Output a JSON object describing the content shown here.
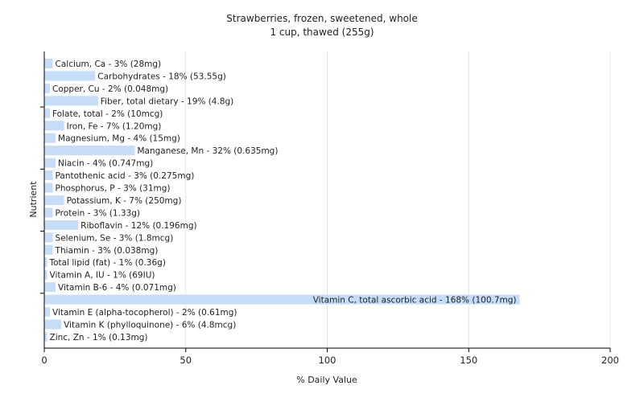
{
  "chart_data": {
    "type": "bar",
    "orientation": "horizontal",
    "title": "Strawberries, frozen, sweetened, whole",
    "subtitle": "1 cup, thawed (255g)",
    "xlabel": "% Daily Value",
    "ylabel": "Nutrient",
    "xlim": [
      0,
      200
    ],
    "xticks": [
      "0",
      "50",
      "100",
      "150",
      "200"
    ],
    "grid": "vertical",
    "bar_color": "#c6dcf7",
    "categories": [
      "Calcium, Ca",
      "Carbohydrates",
      "Copper, Cu",
      "Fiber, total dietary",
      "Folate, total",
      "Iron, Fe",
      "Magnesium, Mg",
      "Manganese, Mn",
      "Niacin",
      "Pantothenic acid",
      "Phosphorus, P",
      "Potassium, K",
      "Protein",
      "Riboflavin",
      "Selenium, Se",
      "Thiamin",
      "Total lipid (fat)",
      "Vitamin A, IU",
      "Vitamin B-6",
      "Vitamin C, total ascorbic acid",
      "Vitamin E (alpha-tocopherol)",
      "Vitamin K (phylloquinone)",
      "Zinc, Zn"
    ],
    "values": [
      3,
      18,
      2,
      19,
      2,
      7,
      4,
      32,
      4,
      3,
      3,
      7,
      3,
      12,
      3,
      3,
      1,
      1,
      4,
      168,
      2,
      6,
      1
    ],
    "bar_labels": [
      "Calcium, Ca - 3% (28mg)",
      "Carbohydrates - 18% (53.55g)",
      "Copper, Cu - 2% (0.048mg)",
      "Fiber, total dietary - 19% (4.8g)",
      "Folate, total - 2% (10mcg)",
      "Iron, Fe - 7% (1.20mg)",
      "Magnesium, Mg - 4% (15mg)",
      "Manganese, Mn - 32% (0.635mg)",
      "Niacin - 4% (0.747mg)",
      "Pantothenic acid - 3% (0.275mg)",
      "Phosphorus, P - 3% (31mg)",
      "Potassium, K - 7% (250mg)",
      "Protein - 3% (1.33g)",
      "Riboflavin - 12% (0.196mg)",
      "Selenium, Se - 3% (1.8mcg)",
      "Thiamin - 3% (0.038mg)",
      "Total lipid (fat) - 1% (0.36g)",
      "Vitamin A, IU - 1% (69IU)",
      "Vitamin B-6 - 4% (0.071mg)",
      "Vitamin C, total ascorbic acid - 168% (100.7mg)",
      "Vitamin E (alpha-tocopherol) - 2% (0.61mg)",
      "Vitamin K (phylloquinone) - 6% (4.8mcg)",
      "Zinc, Zn - 1% (0.13mg)"
    ]
  }
}
